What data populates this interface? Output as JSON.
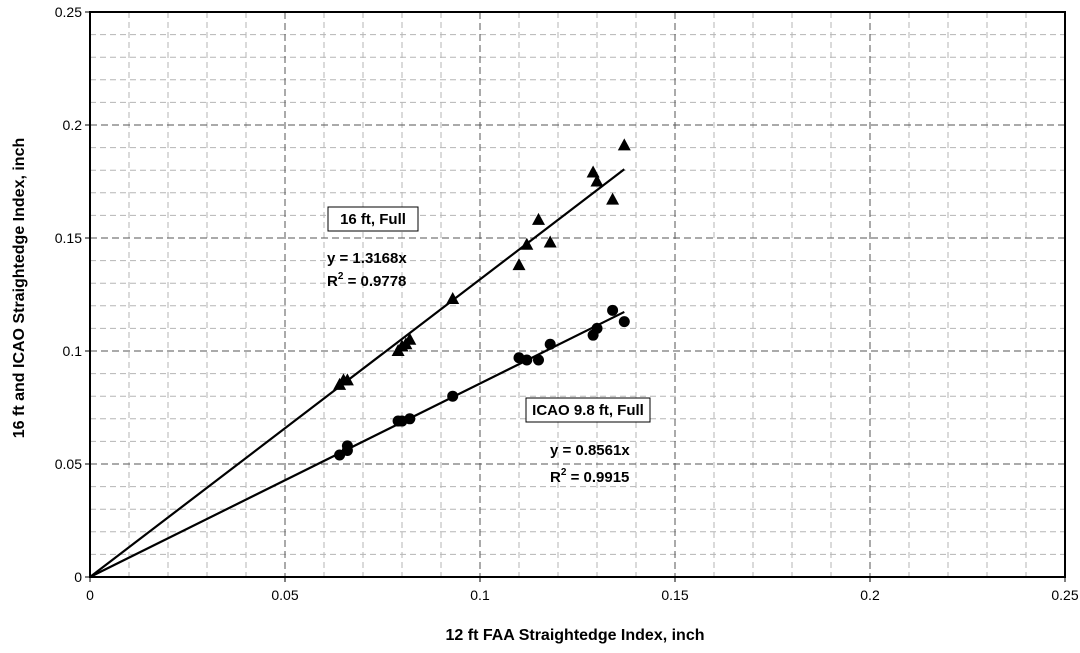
{
  "chart_data": {
    "type": "scatter",
    "title": "",
    "xlabel": "12 ft FAA Straightedge Index, inch",
    "ylabel": "16 ft and ICAO Straightedge Index, inch",
    "xlim": [
      0,
      0.25
    ],
    "ylim": [
      0,
      0.25
    ],
    "x_ticks": [
      0,
      0.05,
      0.1,
      0.15,
      0.2,
      0.25
    ],
    "y_ticks": [
      0,
      0.05,
      0.1,
      0.15,
      0.2,
      0.25
    ],
    "x_tick_labels": [
      "0",
      "0.05",
      "0.1",
      "0.15",
      "0.2",
      "0.25"
    ],
    "y_tick_labels": [
      "0",
      "0.05",
      "0.1",
      "0.15",
      "0.2",
      "0.25"
    ],
    "grid": true,
    "series": [
      {
        "name": "16 ft, Full",
        "marker": "triangle",
        "color": "#000000",
        "trendline": {
          "slope": 1.3168,
          "x_range": [
            0,
            0.137
          ]
        },
        "equation": "y = 1.3168x",
        "r2_prefix": "R",
        "r2_sup": "2",
        "r2_value": " = 0.9778",
        "x": [
          0.064,
          0.065,
          0.066,
          0.079,
          0.08,
          0.081,
          0.082,
          0.093,
          0.11,
          0.112,
          0.115,
          0.118,
          0.129,
          0.13,
          0.134,
          0.137
        ],
        "y": [
          0.085,
          0.087,
          0.087,
          0.1,
          0.102,
          0.103,
          0.105,
          0.123,
          0.138,
          0.147,
          0.158,
          0.148,
          0.179,
          0.175,
          0.167,
          0.191
        ]
      },
      {
        "name": "ICAO 9.8 ft, Full",
        "marker": "circle",
        "color": "#000000",
        "trendline": {
          "slope": 0.8561,
          "x_range": [
            0,
            0.137
          ]
        },
        "equation": "y = 0.8561x",
        "r2_prefix": "R",
        "r2_sup": "2",
        "r2_value": " = 0.9915",
        "x": [
          0.064,
          0.066,
          0.066,
          0.079,
          0.08,
          0.082,
          0.093,
          0.11,
          0.112,
          0.115,
          0.118,
          0.129,
          0.13,
          0.134,
          0.137
        ],
        "y": [
          0.054,
          0.056,
          0.058,
          0.069,
          0.069,
          0.07,
          0.08,
          0.097,
          0.096,
          0.096,
          0.103,
          0.107,
          0.11,
          0.118,
          0.113
        ]
      }
    ]
  }
}
